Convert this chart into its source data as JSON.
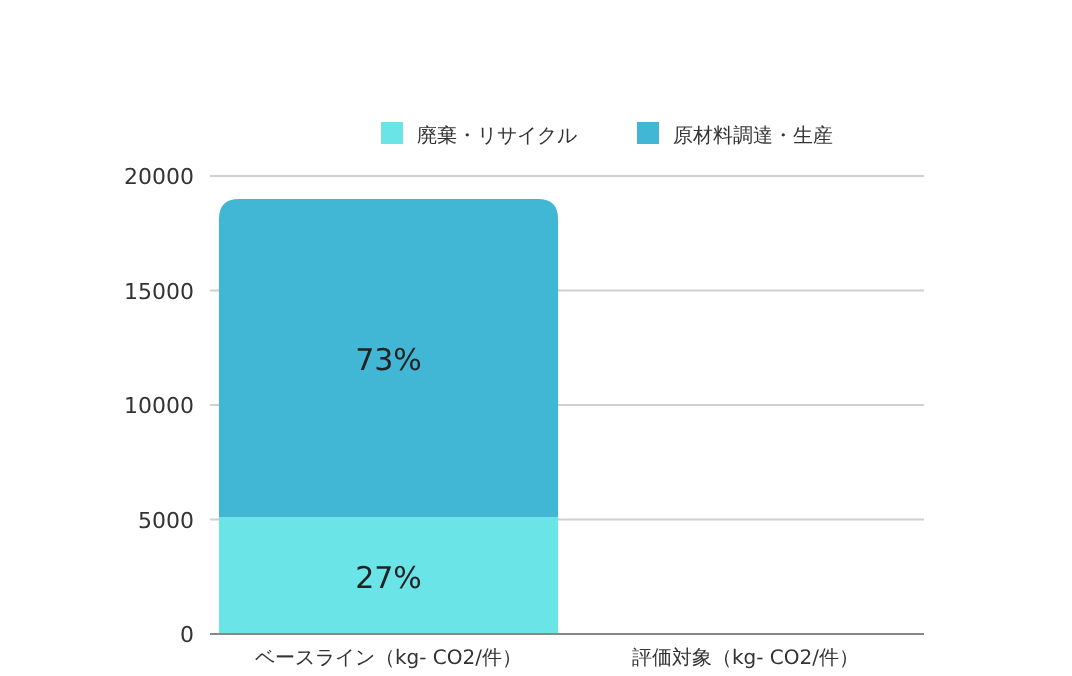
{
  "chart_data": {
    "type": "bar",
    "stacked": true,
    "categories": [
      "ベースライン（kg- CO2/件）",
      "評価対象（kg- CO2/件）"
    ],
    "series": [
      {
        "name": "廃棄・リサイクル",
        "color": "#6ae4e7",
        "values": [
          5100,
          null
        ]
      },
      {
        "name": "原材料調達・生産",
        "color": "#41b7d5",
        "values": [
          13900,
          null
        ]
      }
    ],
    "annotations": [
      "27%",
      "73%"
    ],
    "ylim": [
      0,
      20000
    ],
    "yticks": [
      0,
      5000,
      10000,
      15000,
      20000
    ],
    "grid": "y",
    "legend": "top"
  }
}
